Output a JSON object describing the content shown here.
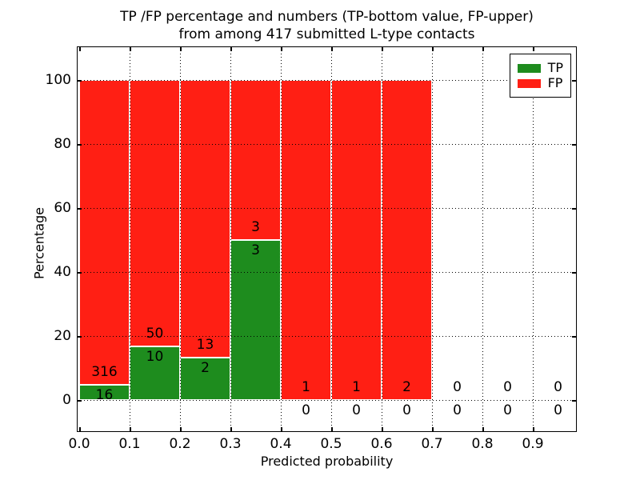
{
  "title": {
    "line1": "TP /FP percentage and numbers (TP-bottom value, FP-upper)",
    "line2": "from among 417 submitted L-type contacts"
  },
  "chart_data": {
    "type": "bar",
    "stacked": true,
    "title": "TP /FP percentage and numbers (TP-bottom value, FP-upper) from among 417 submitted L-type contacts",
    "xlabel": "Predicted probability",
    "ylabel": "Percentage",
    "bin_starts": [
      0.0,
      0.1,
      0.2,
      0.3,
      0.4,
      0.5,
      0.6,
      0.7,
      0.8,
      0.9
    ],
    "bin_width": 0.1,
    "x_tick_labels": [
      "0.0",
      "0.1",
      "0.2",
      "0.3",
      "0.4",
      "0.5",
      "0.6",
      "0.7",
      "0.8",
      "0.9"
    ],
    "y_ticks": [
      0,
      20,
      40,
      60,
      80,
      100
    ],
    "ylim": [
      -10.5,
      110.5
    ],
    "xlim": [
      0,
      0.985
    ],
    "grid": true,
    "grid_style": "dotted",
    "legend_position": "upper right",
    "series": [
      {
        "name": "TP",
        "color": "#1e8c1e",
        "counts": [
          16,
          10,
          2,
          3,
          0,
          0,
          0,
          0,
          0,
          0
        ]
      },
      {
        "name": "FP",
        "color": "#ff1f14",
        "counts": [
          316,
          50,
          13,
          3,
          1,
          1,
          2,
          0,
          0,
          0
        ]
      }
    ],
    "tp_percent_of_bin": [
      4.8,
      16.7,
      13.3,
      50.0,
      0.0,
      0.0,
      0.0,
      0.0,
      0.0,
      0.0
    ],
    "bar_total_height_percent": 100,
    "total_contacts": 417
  }
}
